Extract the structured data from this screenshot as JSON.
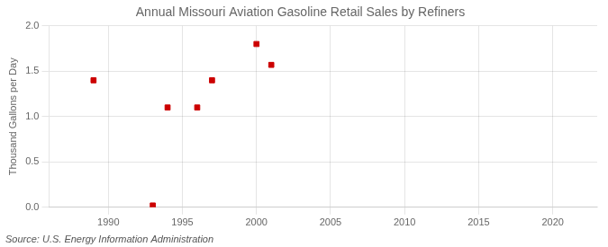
{
  "chart_data": {
    "type": "scatter",
    "title": "Annual Missouri Aviation Gasoline Retail Sales by Refiners",
    "ylabel": "Thousand Gallons per Day",
    "annotations": [
      "Source: U.S. Energy Information Administration"
    ],
    "x": [
      1989,
      1993,
      1994,
      1996,
      1997,
      2000,
      2001
    ],
    "values": [
      1.4,
      0.02,
      1.1,
      1.1,
      1.4,
      1.8,
      1.57
    ],
    "color": "#cc0000",
    "marker": "square",
    "xlim": [
      1986,
      2023
    ],
    "xticks": [
      1990,
      1995,
      2000,
      2005,
      2010,
      2015,
      2020
    ],
    "ylim": [
      0.0,
      2.0
    ],
    "yticks": [
      {
        "value": 0,
        "label": "0.0"
      },
      0.5,
      {
        "value": 1,
        "label": "1.0"
      },
      1.5,
      {
        "value": 2,
        "label": "2.0"
      }
    ],
    "grid": true
  }
}
